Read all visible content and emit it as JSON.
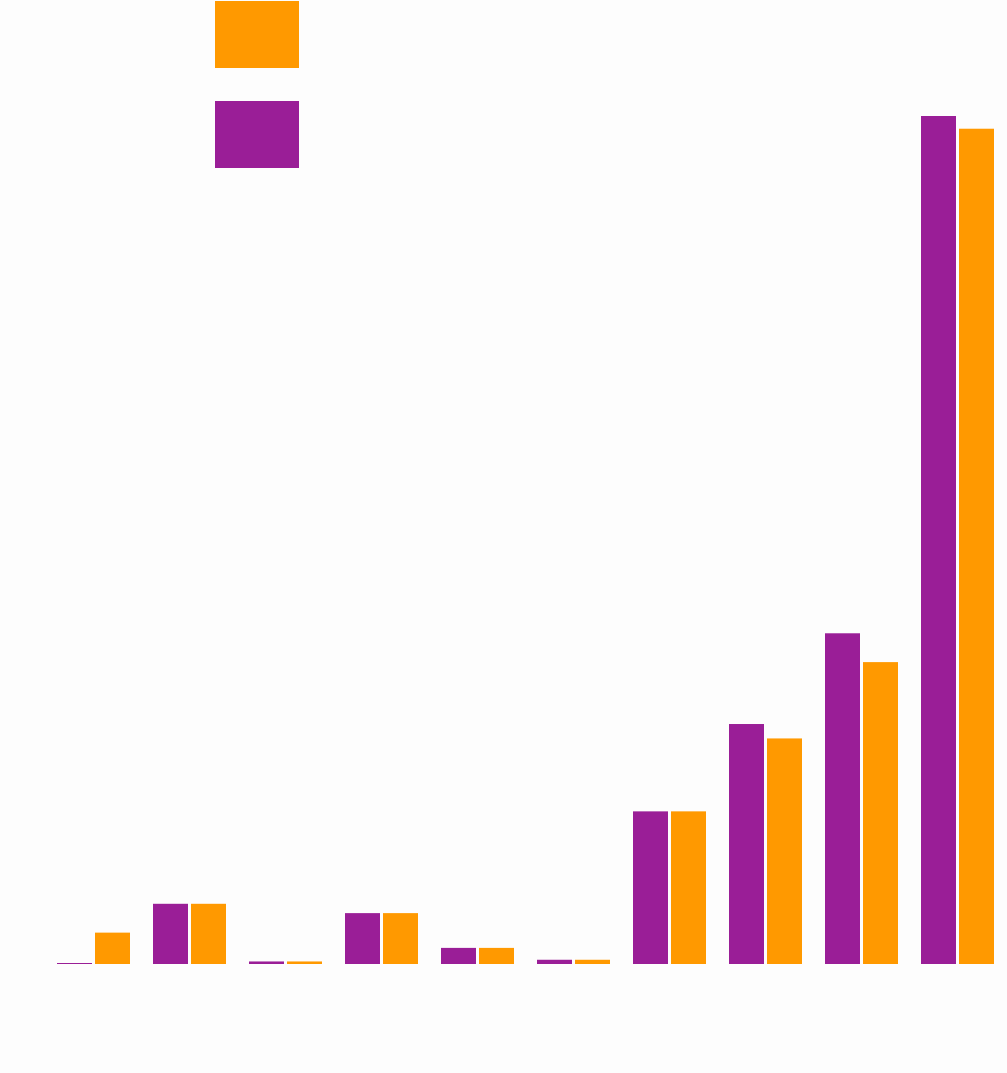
{
  "chart_data": {
    "type": "bar",
    "title": "",
    "xlabel": "",
    "ylabel": "",
    "categories": [
      "",
      "",
      "",
      "",
      "",
      "",
      "",
      "",
      "",
      ""
    ],
    "ylim": [
      0,
      100
    ],
    "grid": false,
    "legend": {
      "position": "top-left",
      "entries_shown": "swatches only"
    },
    "series": [
      {
        "color": "#9a1e97",
        "values": [
          0.1,
          7.1,
          0.3,
          6.0,
          1.9,
          0.5,
          18.0,
          28.3,
          39.0,
          100.0
        ]
      },
      {
        "color": "#ff9900",
        "values": [
          3.7,
          7.1,
          0.3,
          6.0,
          1.9,
          0.5,
          18.0,
          26.6,
          35.6,
          98.5
        ]
      }
    ]
  },
  "legend_items": [
    {
      "color": "#ff9900"
    },
    {
      "color": "#9a1e97"
    }
  ]
}
